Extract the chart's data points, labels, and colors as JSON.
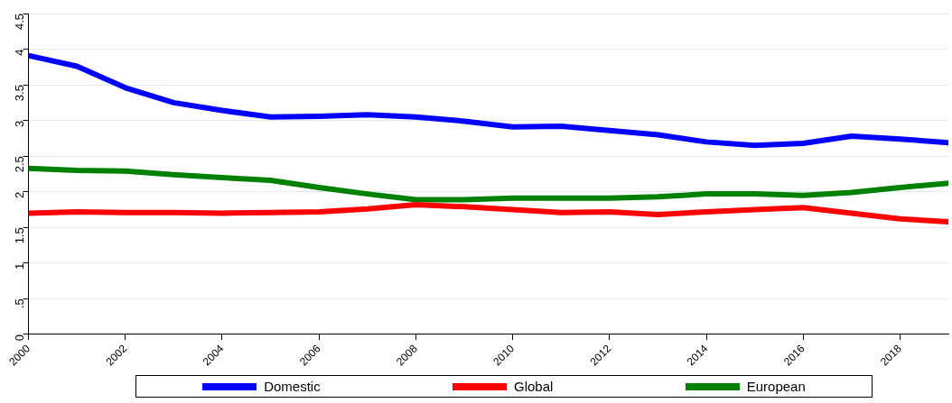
{
  "chart_data": {
    "type": "line",
    "x": [
      2000,
      2001,
      2002,
      2003,
      2004,
      2005,
      2006,
      2007,
      2008,
      2009,
      2010,
      2011,
      2012,
      2013,
      2014,
      2015,
      2016,
      2017,
      2018,
      2019
    ],
    "series": [
      {
        "name": "Domestic",
        "color": "#0000ff",
        "values": [
          3.91,
          3.76,
          3.46,
          3.25,
          3.14,
          3.05,
          3.06,
          3.08,
          3.05,
          2.99,
          2.91,
          2.92,
          2.86,
          2.8,
          2.7,
          2.65,
          2.68,
          2.78,
          2.74,
          2.69
        ]
      },
      {
        "name": "Global",
        "color": "#ff0000",
        "values": [
          1.7,
          1.72,
          1.71,
          1.71,
          1.7,
          1.71,
          1.72,
          1.76,
          1.82,
          1.79,
          1.75,
          1.71,
          1.72,
          1.68,
          1.72,
          1.75,
          1.78,
          1.7,
          1.62,
          1.58
        ]
      },
      {
        "name": "European",
        "color": "#008000",
        "values": [
          2.33,
          2.3,
          2.29,
          2.24,
          2.2,
          2.16,
          2.06,
          1.97,
          1.89,
          1.89,
          1.91,
          1.91,
          1.91,
          1.93,
          1.97,
          1.97,
          1.95,
          1.99,
          2.06,
          2.12
        ]
      }
    ],
    "xlim": [
      2000,
      2019
    ],
    "xticks": [
      2000,
      2002,
      2004,
      2006,
      2008,
      2010,
      2012,
      2014,
      2016,
      2018
    ],
    "ylim": [
      0,
      4.5
    ],
    "yticks": [
      0,
      {
        "value": 0.5,
        "label": ".5"
      },
      1,
      1.5,
      2,
      2.5,
      3,
      3.5,
      4,
      4.5
    ],
    "grid": "y",
    "legend": "bottom",
    "marker": "none",
    "line_style": "solid"
  }
}
